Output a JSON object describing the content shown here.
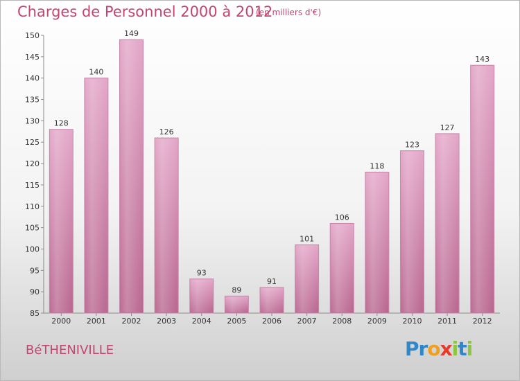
{
  "chart_data": {
    "type": "bar",
    "title": "Charges de Personnel 2000 à 2012",
    "subtitle": "(en milliers d'€)",
    "categories": [
      "2000",
      "2001",
      "2002",
      "2003",
      "2004",
      "2005",
      "2006",
      "2007",
      "2008",
      "2009",
      "2010",
      "2011",
      "2012"
    ],
    "values": [
      128,
      140,
      149,
      126,
      93,
      89,
      91,
      101,
      106,
      118,
      123,
      127,
      143
    ],
    "ylim": [
      85,
      150
    ],
    "yticks": [
      85,
      90,
      95,
      100,
      105,
      110,
      115,
      120,
      125,
      130,
      135,
      140,
      145,
      150
    ],
    "grid": false,
    "bar_color": "#d98fb7",
    "title_color": "#c2466e"
  },
  "footer": {
    "commune": "BéTHENIVILLE"
  },
  "logo": {
    "letters": [
      {
        "ch": "P",
        "color": "#2f86c8"
      },
      {
        "ch": "r",
        "color": "#2f86c8"
      },
      {
        "ch": "o",
        "color": "#f0a020"
      },
      {
        "ch": "x",
        "color": "#e83a2c"
      },
      {
        "ch": "i",
        "color": "#8cc63e"
      },
      {
        "ch": "t",
        "color": "#2f86c8"
      },
      {
        "ch": "i",
        "color": "#8cc63e"
      }
    ]
  }
}
